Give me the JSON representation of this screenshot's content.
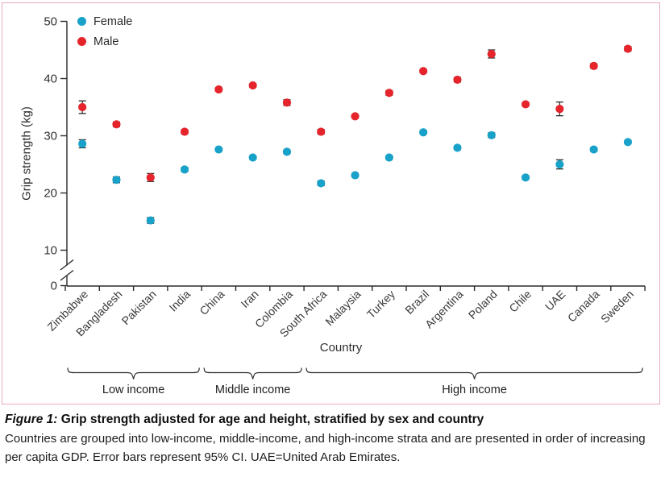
{
  "panel": {
    "border_color": "#e8abba"
  },
  "chart_data": {
    "type": "scatter",
    "title": "",
    "xlabel": "Country",
    "ylabel": "Grip strength (kg)",
    "ylim": [
      0,
      50
    ],
    "yticks": [
      0,
      10,
      20,
      30,
      40,
      50
    ],
    "y_axis_break": "between 0 and 10",
    "grid": "off",
    "legend_position": "top-left",
    "error_bars": "95% CI",
    "legend": [
      {
        "name": "Female",
        "color": "#18a2c9"
      },
      {
        "name": "Male",
        "color": "#e5242b"
      }
    ],
    "categories": [
      "Zimbabwe",
      "Bangladesh",
      "Pakistan",
      "India",
      "China",
      "Iran",
      "Colombia",
      "South Africa",
      "Malaysia",
      "Turkey",
      "Brazil",
      "Argentina",
      "Poland",
      "Chile",
      "UAE",
      "Canada",
      "Sweden"
    ],
    "groups": [
      {
        "label": "Low income",
        "from_index": 0,
        "to_index": 3
      },
      {
        "label": "Middle income",
        "from_index": 4,
        "to_index": 6
      },
      {
        "label": "High income",
        "from_index": 7,
        "to_index": 16
      }
    ],
    "series": [
      {
        "name": "Female",
        "color": "#18a2c9",
        "values": [
          28.6,
          22.3,
          15.2,
          24.1,
          27.6,
          26.2,
          27.2,
          21.7,
          23.1,
          26.2,
          30.6,
          27.9,
          30.1,
          22.7,
          25.0,
          27.6,
          28.9
        ],
        "ci95_halfwidth": [
          0.7,
          0.5,
          0.5,
          0.35,
          0.25,
          0.3,
          0.3,
          0.4,
          0.3,
          0.3,
          0.3,
          0.3,
          0.4,
          0.3,
          0.8,
          0.3,
          0.3
        ]
      },
      {
        "name": "Male",
        "color": "#e5242b",
        "values": [
          35.0,
          32.0,
          22.7,
          30.7,
          38.1,
          38.8,
          35.8,
          30.7,
          33.4,
          37.5,
          41.3,
          39.8,
          44.3,
          35.5,
          34.7,
          42.2,
          45.2
        ],
        "ci95_halfwidth": [
          1.1,
          0.4,
          0.7,
          0.35,
          0.3,
          0.3,
          0.5,
          0.4,
          0.3,
          0.4,
          0.3,
          0.4,
          0.7,
          0.3,
          1.2,
          0.4,
          0.4
        ]
      }
    ]
  },
  "caption": {
    "figure_label": "Figure 1:",
    "title": " Grip strength adjusted for age and height, stratified by sex and country",
    "body": "Countries are grouped into low-income, middle-income, and high-income strata and are presented in order of increasing per capita GDP. Error bars represent 95% CI. UAE=United Arab Emirates."
  }
}
